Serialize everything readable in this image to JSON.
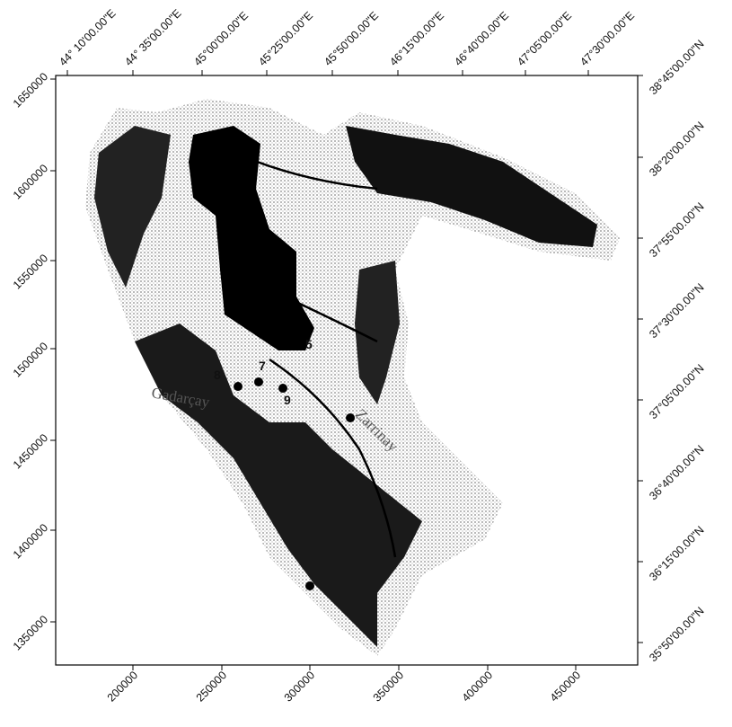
{
  "axes": {
    "top": [
      "44° 10'00.00\"E",
      "44° 35'00.00\"E",
      "45°00'00.00\"E",
      "45°25'00.00\"E",
      "45°50'00.00\"E",
      "46°15'00.00\"E",
      "46°40'00.00\"E",
      "47°05'00.00\"E",
      "47°30'00.00\"E"
    ],
    "right": [
      "38°45'00.00\"N",
      "38°20'00.00\"N",
      "37°55'00.00\"N",
      "37°30'00.00\"N",
      "37°05'00.00\"N",
      "36°40'00.00\"N",
      "36°15'00.00\"N",
      "35°50'00.00\"N"
    ],
    "left": [
      "1650000",
      "1600000",
      "1550000",
      "1500000",
      "1450000",
      "1400000",
      "1350000"
    ],
    "bottom": [
      "200000",
      "250000",
      "300000",
      "350000",
      "400000",
      "450000"
    ]
  },
  "map_labels": [
    "5",
    "7",
    "8",
    "9",
    "Zarrinay",
    "Gadarçay"
  ]
}
